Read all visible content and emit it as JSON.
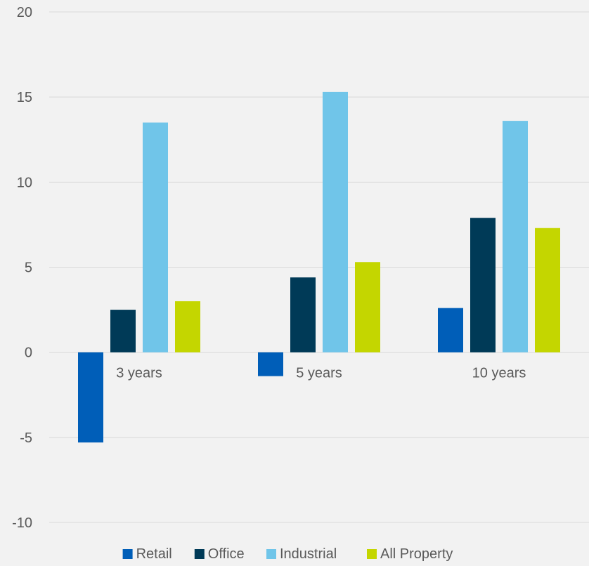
{
  "chart_data": {
    "type": "bar",
    "categories": [
      "3 years",
      "5 years",
      "10 years"
    ],
    "series": [
      {
        "name": "Retail",
        "color": "#005eb8",
        "values": [
          -5.3,
          -1.4,
          2.6
        ]
      },
      {
        "name": "Office",
        "color": "#003a57",
        "values": [
          2.5,
          4.4,
          7.9
        ]
      },
      {
        "name": "Industrial",
        "color": "#70c5e9",
        "values": [
          13.5,
          15.3,
          13.6
        ]
      },
      {
        "name": "All Property",
        "color": "#c4d600",
        "values": [
          3.0,
          5.3,
          7.3
        ]
      }
    ],
    "yticks": [
      "20",
      "15",
      "10",
      "5",
      "0",
      "-5",
      "-10"
    ],
    "ylim": [
      -10,
      20
    ],
    "grid": true,
    "legend_position": "bottom"
  }
}
